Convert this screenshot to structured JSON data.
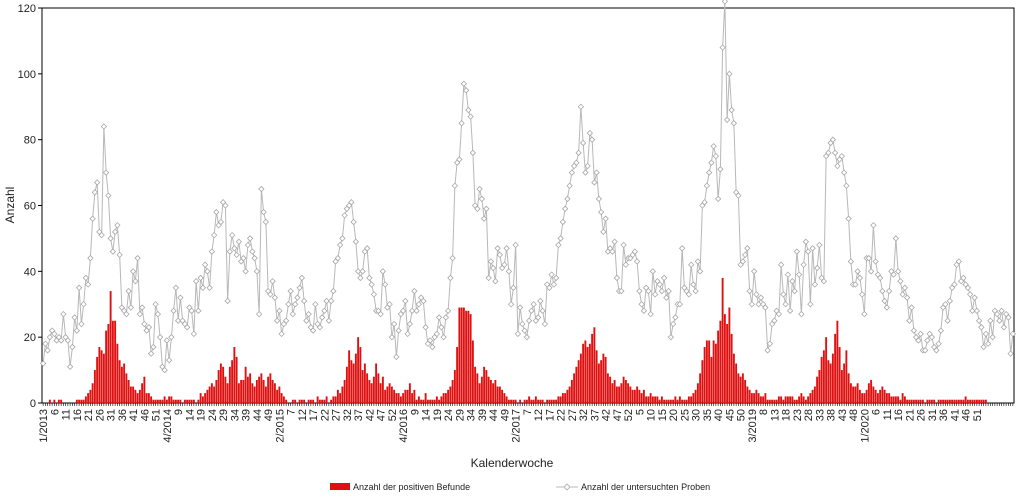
{
  "chart_data": {
    "type": "bar+line",
    "xlabel": "Kalenderwoche",
    "ylabel": "Anzahl",
    "ylim": [
      0,
      120
    ],
    "yticks": [
      0,
      20,
      40,
      60,
      80,
      100,
      120
    ],
    "grid": false,
    "legend_position": "bottom",
    "tick_labels": [
      {
        "week": 0,
        "label": "1/2013"
      },
      {
        "week": 5,
        "label": "6"
      },
      {
        "week": 10,
        "label": "11"
      },
      {
        "week": 15,
        "label": "16"
      },
      {
        "week": 20,
        "label": "21"
      },
      {
        "week": 25,
        "label": "26"
      },
      {
        "week": 30,
        "label": "31"
      },
      {
        "week": 35,
        "label": "36"
      },
      {
        "week": 40,
        "label": "41"
      },
      {
        "week": 45,
        "label": "46"
      },
      {
        "week": 50,
        "label": "51"
      },
      {
        "week": 55,
        "label": "4/2014"
      },
      {
        "week": 60,
        "label": "9"
      },
      {
        "week": 65,
        "label": "14"
      },
      {
        "week": 70,
        "label": "19"
      },
      {
        "week": 75,
        "label": "24"
      },
      {
        "week": 80,
        "label": "29"
      },
      {
        "week": 85,
        "label": "34"
      },
      {
        "week": 90,
        "label": "39"
      },
      {
        "week": 95,
        "label": "44"
      },
      {
        "week": 100,
        "label": "49"
      },
      {
        "week": 105,
        "label": "2/2015"
      },
      {
        "week": 110,
        "label": "7"
      },
      {
        "week": 115,
        "label": "12"
      },
      {
        "week": 120,
        "label": "17"
      },
      {
        "week": 125,
        "label": "22"
      },
      {
        "week": 130,
        "label": "27"
      },
      {
        "week": 135,
        "label": "32"
      },
      {
        "week": 140,
        "label": "37"
      },
      {
        "week": 145,
        "label": "42"
      },
      {
        "week": 150,
        "label": "47"
      },
      {
        "week": 155,
        "label": "52"
      },
      {
        "week": 160,
        "label": "4/2016"
      },
      {
        "week": 165,
        "label": "9"
      },
      {
        "week": 170,
        "label": "14"
      },
      {
        "week": 175,
        "label": "19"
      },
      {
        "week": 180,
        "label": "24"
      },
      {
        "week": 185,
        "label": "29"
      },
      {
        "week": 190,
        "label": "34"
      },
      {
        "week": 195,
        "label": "39"
      },
      {
        "week": 200,
        "label": "44"
      },
      {
        "week": 205,
        "label": "49"
      },
      {
        "week": 210,
        "label": "2/2017"
      },
      {
        "week": 215,
        "label": "7"
      },
      {
        "week": 220,
        "label": "12"
      },
      {
        "week": 225,
        "label": "17"
      },
      {
        "week": 230,
        "label": "22"
      },
      {
        "week": 235,
        "label": "27"
      },
      {
        "week": 240,
        "label": "32"
      },
      {
        "week": 245,
        "label": "37"
      },
      {
        "week": 250,
        "label": "42"
      },
      {
        "week": 255,
        "label": "47"
      },
      {
        "week": 260,
        "label": "52"
      },
      {
        "week": 265,
        "label": "5"
      },
      {
        "week": 270,
        "label": "10"
      },
      {
        "week": 275,
        "label": "15"
      },
      {
        "week": 280,
        "label": "20"
      },
      {
        "week": 285,
        "label": "25"
      },
      {
        "week": 290,
        "label": "30"
      },
      {
        "week": 295,
        "label": "35"
      },
      {
        "week": 300,
        "label": "40"
      },
      {
        "week": 305,
        "label": "45"
      },
      {
        "week": 310,
        "label": "50"
      },
      {
        "week": 315,
        "label": "3/2019"
      },
      {
        "week": 320,
        "label": "8"
      },
      {
        "week": 325,
        "label": "13"
      },
      {
        "week": 330,
        "label": "18"
      },
      {
        "week": 335,
        "label": "23"
      },
      {
        "week": 340,
        "label": "28"
      },
      {
        "week": 345,
        "label": "33"
      },
      {
        "week": 350,
        "label": "38"
      },
      {
        "week": 355,
        "label": "43"
      },
      {
        "week": 360,
        "label": "48"
      },
      {
        "week": 365,
        "label": "1/2020"
      },
      {
        "week": 370,
        "label": "6"
      },
      {
        "week": 375,
        "label": "11"
      },
      {
        "week": 380,
        "label": "16"
      },
      {
        "week": 385,
        "label": "21"
      },
      {
        "week": 390,
        "label": "26"
      },
      {
        "week": 395,
        "label": "31"
      },
      {
        "week": 400,
        "label": "36"
      },
      {
        "week": 405,
        "label": "41"
      },
      {
        "week": 410,
        "label": "46"
      },
      {
        "week": 415,
        "label": "51"
      }
    ],
    "series": [
      {
        "name": "Anzahl der positiven Befunde",
        "kind": "bar",
        "color": "#e01010",
        "values": [
          0,
          0,
          0,
          1,
          0,
          1,
          0,
          1,
          1,
          0,
          0,
          0,
          0,
          0,
          0,
          1,
          1,
          1,
          1,
          2,
          3,
          4,
          6,
          10,
          14,
          17,
          16,
          15,
          22,
          24,
          34,
          25,
          25,
          18,
          13,
          11,
          12,
          9,
          7,
          5,
          5,
          4,
          3,
          4,
          6,
          8,
          3,
          3,
          2,
          1,
          1,
          1,
          1,
          1,
          2,
          1,
          2,
          2,
          1,
          1,
          1,
          1,
          0,
          1,
          1,
          1,
          1,
          1,
          0,
          1,
          3,
          2,
          3,
          4,
          5,
          6,
          5,
          7,
          10,
          12,
          11,
          8,
          6,
          11,
          13,
          17,
          14,
          6,
          7,
          7,
          11,
          8,
          9,
          6,
          5,
          7,
          8,
          9,
          7,
          5,
          8,
          9,
          7,
          6,
          4,
          5,
          3,
          2,
          1,
          0,
          0,
          1,
          1,
          0,
          1,
          1,
          1,
          0,
          1,
          1,
          1,
          0,
          2,
          1,
          1,
          1,
          2,
          0,
          1,
          2,
          2,
          4,
          3,
          5,
          7,
          11,
          16,
          13,
          12,
          15,
          20,
          17,
          10,
          12,
          9,
          7,
          6,
          8,
          12,
          9,
          6,
          8,
          4,
          5,
          6,
          5,
          4,
          3,
          3,
          2,
          3,
          4,
          4,
          6,
          3,
          4,
          1,
          2,
          1,
          1,
          3,
          1,
          1,
          1,
          1,
          2,
          1,
          2,
          3,
          3,
          4,
          5,
          7,
          10,
          17,
          29,
          29,
          29,
          28,
          28,
          27,
          19,
          11,
          9,
          6,
          8,
          11,
          10,
          8,
          7,
          6,
          7,
          5,
          5,
          4,
          3,
          2,
          1,
          1,
          1,
          1,
          0,
          1,
          0,
          1,
          1,
          2,
          1,
          1,
          2,
          1,
          1,
          1,
          0,
          1,
          1,
          1,
          1,
          1,
          2,
          2,
          3,
          3,
          4,
          5,
          7,
          9,
          11,
          13,
          15,
          18,
          19,
          17,
          18,
          21,
          23,
          16,
          12,
          13,
          15,
          14,
          9,
          8,
          6,
          7,
          5,
          5,
          6,
          8,
          7,
          6,
          5,
          4,
          4,
          5,
          4,
          3,
          4,
          2,
          2,
          3,
          2,
          2,
          2,
          1,
          2,
          1,
          1,
          1,
          1,
          1,
          2,
          1,
          2,
          1,
          1,
          1,
          2,
          2,
          3,
          4,
          6,
          9,
          13,
          17,
          19,
          19,
          14,
          19,
          18,
          22,
          25,
          38,
          27,
          24,
          29,
          21,
          15,
          12,
          9,
          8,
          9,
          7,
          5,
          4,
          3,
          3,
          4,
          3,
          2,
          2,
          3,
          1,
          1,
          1,
          1,
          1,
          2,
          2,
          1,
          2,
          2,
          2,
          2,
          1,
          1,
          2,
          3,
          2,
          1,
          2,
          3,
          4,
          5,
          8,
          10,
          14,
          16,
          20,
          13,
          12,
          15,
          21,
          25,
          17,
          10,
          12,
          16,
          9,
          6,
          5,
          5,
          6,
          4,
          3,
          3,
          4,
          6,
          7,
          5,
          4,
          3,
          4,
          5,
          4,
          3,
          3,
          2,
          2,
          2,
          2,
          1,
          3,
          2,
          1,
          1,
          1,
          1,
          1,
          1,
          1,
          1,
          0,
          1,
          1,
          1,
          1,
          0,
          1,
          1,
          1,
          1,
          1,
          1,
          1,
          1,
          1,
          1,
          1,
          1,
          2,
          1,
          1,
          1,
          1,
          1,
          1,
          1,
          1,
          1
        ]
      },
      {
        "name": "Anzahl der untersuchten Proben",
        "kind": "line",
        "color": "#b8b8b8",
        "values": [
          12,
          18,
          16,
          20,
          22,
          21,
          19,
          20,
          19,
          27,
          20,
          19,
          11,
          17,
          26,
          22,
          35,
          24,
          30,
          38,
          36,
          44,
          56,
          64,
          67,
          52,
          51,
          84,
          70,
          63,
          50,
          46,
          52,
          54,
          45,
          29,
          28,
          27,
          34,
          29,
          40,
          37,
          44,
          27,
          29,
          24,
          22,
          23,
          15,
          17,
          30,
          27,
          20,
          11,
          10,
          19,
          13,
          20,
          28,
          35,
          25,
          32,
          25,
          24,
          23,
          29,
          28,
          21,
          37,
          28,
          38,
          35,
          42,
          40,
          35,
          46,
          51,
          58,
          54,
          55,
          61,
          60,
          31,
          46,
          51,
          47,
          45,
          49,
          43,
          44,
          40,
          48,
          50,
          46,
          44,
          40,
          27,
          65,
          58,
          55,
          34,
          33,
          37,
          32,
          25,
          28,
          21,
          24,
          25,
          30,
          34,
          27,
          30,
          32,
          35,
          38,
          31,
          25,
          27,
          23,
          22,
          30,
          24,
          23,
          26,
          28,
          31,
          25,
          31,
          34,
          43,
          44,
          48,
          50,
          57,
          59,
          60,
          61,
          55,
          49,
          40,
          38,
          40,
          46,
          47,
          38,
          36,
          33,
          28,
          28,
          27,
          40,
          36,
          29,
          30,
          20,
          24,
          14,
          22,
          27,
          28,
          31,
          21,
          24,
          28,
          34,
          28,
          30,
          32,
          31,
          23,
          18,
          19,
          17,
          20,
          21,
          26,
          23,
          20,
          26,
          28,
          38,
          44,
          66,
          73,
          74,
          85,
          97,
          95,
          89,
          87,
          76,
          60,
          59,
          65,
          62,
          56,
          59,
          38,
          43,
          41,
          37,
          47,
          45,
          41,
          42,
          47,
          40,
          30,
          35,
          48,
          21,
          29,
          24,
          22,
          20,
          25,
          28,
          30,
          25,
          26,
          31,
          28,
          24,
          36,
          35,
          39,
          36,
          38,
          48,
          50,
          55,
          59,
          62,
          66,
          70,
          72,
          73,
          76,
          90,
          79,
          70,
          72,
          82,
          80,
          67,
          70,
          62,
          58,
          52,
          56,
          46,
          47,
          46,
          49,
          38,
          34,
          34,
          48,
          42,
          44,
          44,
          45,
          46,
          43,
          34,
          30,
          28,
          35,
          34,
          27,
          40,
          33,
          37,
          36,
          34,
          38,
          32,
          34,
          20,
          24,
          26,
          30,
          30,
          47,
          35,
          34,
          33,
          42,
          36,
          34,
          43,
          40,
          60,
          61,
          66,
          70,
          73,
          78,
          75,
          62,
          71,
          108,
          122,
          86,
          100,
          89,
          85,
          64,
          63,
          42,
          43,
          45,
          47,
          34,
          30,
          40,
          33,
          30,
          32,
          30,
          29,
          16,
          18,
          24,
          25,
          28,
          27,
          42,
          33,
          30,
          39,
          28,
          37,
          34,
          46,
          39,
          27,
          42,
          49,
          46,
          30,
          47,
          36,
          41,
          48,
          38,
          37,
          75,
          76,
          79,
          80,
          76,
          72,
          74,
          75,
          70,
          66,
          56,
          43,
          36,
          36,
          40,
          38,
          33,
          27,
          44,
          44,
          40,
          54,
          43,
          39,
          38,
          34,
          31,
          29,
          34,
          40,
          39,
          50,
          40,
          37,
          33,
          35,
          32,
          25,
          29,
          22,
          20,
          19,
          21,
          16,
          16,
          19,
          21,
          20,
          17,
          16,
          18,
          22,
          29,
          30,
          25,
          31,
          35,
          36,
          42,
          43,
          37,
          38,
          36,
          35,
          33,
          28,
          32,
          28,
          25,
          23,
          17,
          21,
          18,
          25,
          20,
          28,
          27,
          25,
          28,
          23,
          27,
          26,
          15,
          21
        ]
      }
    ]
  }
}
